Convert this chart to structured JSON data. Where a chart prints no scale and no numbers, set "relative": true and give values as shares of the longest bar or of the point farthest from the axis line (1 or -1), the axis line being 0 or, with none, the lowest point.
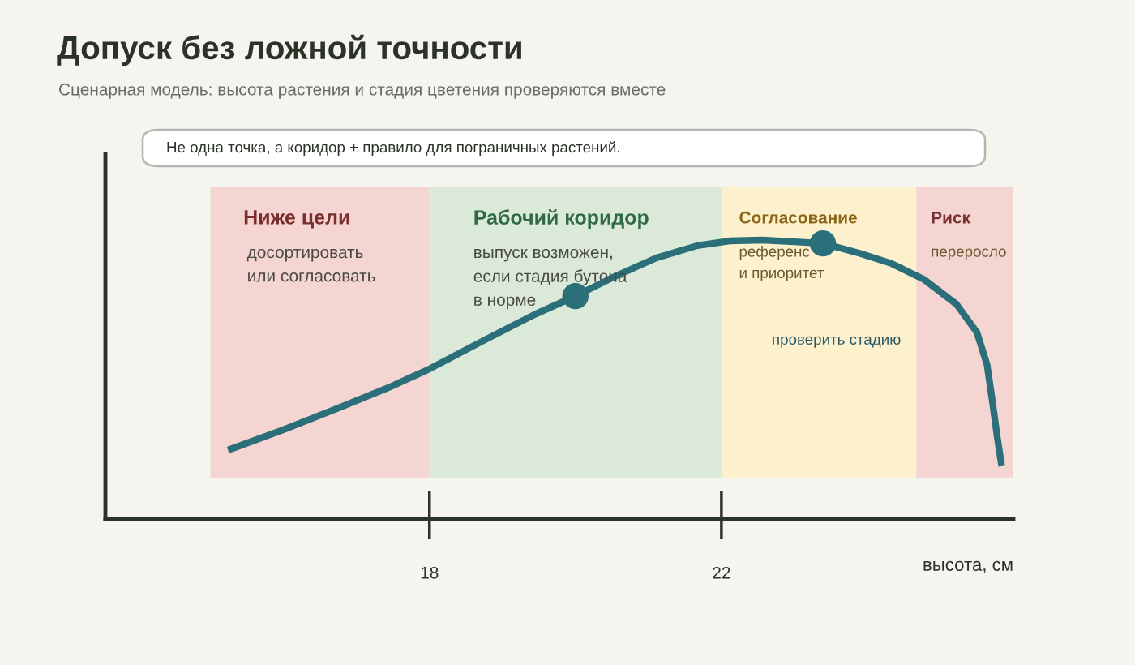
{
  "chart_data": {
    "type": "line",
    "title": "Допуск без ложной точности",
    "subtitle": "Сценарная модель: высота растения и стадия цветения проверяются вместе",
    "xlabel": "высота, см",
    "relative": true,
    "xlim": [
      13.56,
      26
    ],
    "xticks": [
      18,
      22
    ],
    "grid": false,
    "legend": false,
    "series": [
      {
        "color": "#2a6f7a",
        "marker": "none",
        "x": [
          15.24,
          16.0,
          16.78,
          17.44,
          18.0,
          18.78,
          19.44,
          20.0,
          20.56,
          21.11,
          21.67,
          22.11,
          22.56,
          23.0,
          23.39,
          23.89,
          24.33,
          24.78,
          25.22,
          25.5,
          25.64,
          25.72,
          25.78,
          25.84
        ],
        "values": [
          0.247,
          0.32,
          0.401,
          0.471,
          0.538,
          0.645,
          0.733,
          0.799,
          0.872,
          0.936,
          0.98,
          0.997,
          1.0,
          0.994,
          0.988,
          0.953,
          0.916,
          0.858,
          0.77,
          0.669,
          0.552,
          0.407,
          0.291,
          0.189
        ]
      },
      {
        "type": "scatter",
        "color": "#2a6f7a",
        "marker": "circle",
        "x": [
          20.0,
          23.39
        ],
        "values": [
          0.799,
          0.988
        ]
      }
    ],
    "ref_lines": [
      {
        "axis": "x",
        "value": 18,
        "color": "#2b3329"
      },
      {
        "axis": "x",
        "value": 22,
        "color": "#2b3329"
      }
    ],
    "bands": [
      {
        "axis": "x",
        "from": 15,
        "to": 18,
        "label": "Ниже цели",
        "color": "#f5d5d2"
      },
      {
        "axis": "x",
        "from": 18,
        "to": 22,
        "label": "Рабочий коридор",
        "color": "#dbead8"
      },
      {
        "axis": "x",
        "from": 22,
        "to": 24.67,
        "label": "Согласование",
        "color": "#fdf0cc"
      },
      {
        "axis": "x",
        "from": 24.67,
        "to": 26,
        "label": "Риск",
        "color": "#f5d5d2"
      }
    ],
    "annotations": [
      "Не одна точка, а коридор + правило для пограничных растений.",
      "досортировать\nили согласовать",
      "выпуск возможен,\nесли стадия бутона\nв норме",
      "референс\nи приоритет",
      "переросло",
      "проверить стадию"
    ]
  }
}
